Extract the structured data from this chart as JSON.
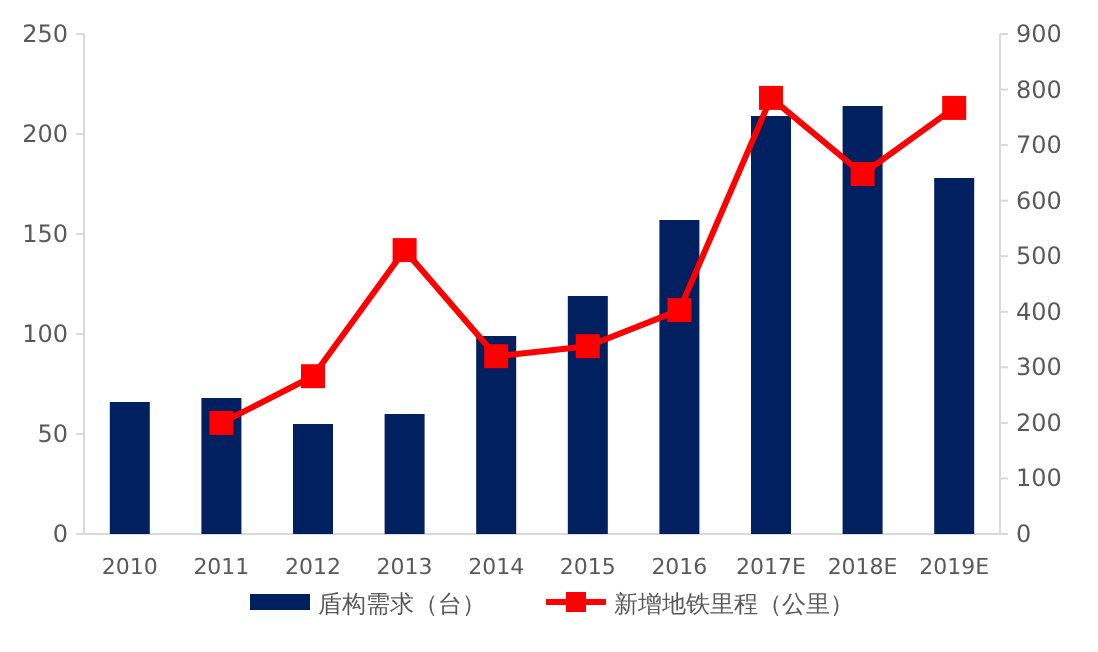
{
  "chart_data": {
    "type": "bar",
    "categories": [
      "2010",
      "2011",
      "2012",
      "2013",
      "2014",
      "2015",
      "2016",
      "2017E",
      "2018E",
      "2019E"
    ],
    "series": [
      {
        "name": "盾构需求（台）",
        "color": "#002060",
        "values": [
          66,
          68,
          55,
          60,
          99,
          119,
          157,
          209,
          214,
          178
        ]
      },
      {
        "name": "新增地铁里程（公里）",
        "type": "line",
        "axis": "y2",
        "color": "#ff0000",
        "marker": "square",
        "values": [
          null,
          200,
          284,
          511,
          320,
          338,
          403,
          785,
          648,
          767
        ]
      }
    ],
    "ylim": [
      0,
      250
    ],
    "yticks": [
      0,
      50,
      100,
      150,
      200,
      250
    ],
    "y2lim": [
      0,
      900
    ],
    "y2ticks": [
      0,
      100,
      200,
      300,
      400,
      500,
      600,
      700,
      800,
      900
    ],
    "grid": false,
    "legend": "bottom"
  }
}
